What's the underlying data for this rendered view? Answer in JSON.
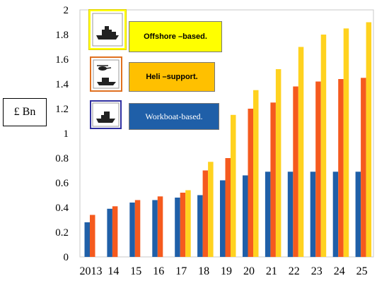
{
  "chart_data": {
    "type": "bar",
    "categories": [
      "2013",
      "14",
      "15",
      "16",
      "17",
      "18",
      "19",
      "20",
      "21",
      "22",
      "23",
      "24",
      "25"
    ],
    "series": [
      {
        "name": "Workboat-based.",
        "color": "#1f5fa8",
        "values": [
          0.28,
          0.39,
          0.44,
          0.46,
          0.48,
          0.5,
          0.62,
          0.66,
          0.69,
          0.69,
          0.69,
          0.69,
          0.69
        ]
      },
      {
        "name": "Heli –support.",
        "color": "#f55a1e",
        "values": [
          0.34,
          0.41,
          0.46,
          0.49,
          0.52,
          0.7,
          0.8,
          1.2,
          1.25,
          1.38,
          1.42,
          1.44,
          1.45
        ]
      },
      {
        "name": "Offshore –based.",
        "color": "#ffd21f",
        "values": [
          null,
          null,
          null,
          null,
          0.54,
          0.77,
          1.15,
          1.35,
          1.52,
          1.7,
          1.8,
          1.85,
          1.9
        ]
      }
    ],
    "yticks": [
      "0",
      "0.2",
      "0.4",
      "0.6",
      "0.8",
      "1",
      "1.2",
      "1.4",
      "1.6",
      "1.8",
      "2"
    ],
    "ylim": [
      0,
      2
    ],
    "ylabel": "£ Bn",
    "legend_placement": "top-left inside plot"
  },
  "legend": {
    "items": [
      {
        "label": "Offshore –based.",
        "icon": "ship-icon",
        "bg": "#ffff00",
        "frame": "#ffff00"
      },
      {
        "label": "Heli –support.",
        "icon": "helicopter-icon",
        "bg": "#ffc000",
        "frame": "#e07020"
      },
      {
        "label": "Workboat-based.",
        "icon": "workboat-icon",
        "bg": "#1f5fa8",
        "frame": "#3030a0"
      }
    ]
  }
}
